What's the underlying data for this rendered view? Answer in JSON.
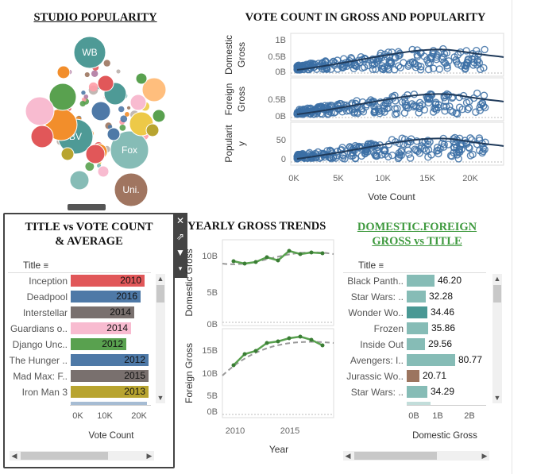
{
  "titles": {
    "studio": "STUDIO POPULARITY",
    "vote_count": "VOTE COUNT IN GROSS AND POPULARITY",
    "title_vs_vote_1": "TITLE vs VOTE COUNT",
    "title_vs_vote_2": "& AVERAGE",
    "yearly": "YEARLY GROSS TRENDS",
    "dom_foreign_1": "DOMESTIC.FOREIGN",
    "dom_foreign_2": "GROSS vs TITLE"
  },
  "bubbles": {
    "labels": [
      "WB",
      "BV",
      "Fox",
      "Uni."
    ]
  },
  "scatter": {
    "panels": [
      {
        "ylabel_1": "Domestic",
        "ylabel_2": "Gross",
        "ticks": [
          "1B",
          "0.5B",
          "0B"
        ]
      },
      {
        "ylabel_1": "Foreign",
        "ylabel_2": "Gross",
        "ticks": [
          "0.5B",
          "0B"
        ]
      },
      {
        "ylabel_1": "Popularit",
        "ylabel_2": "y",
        "ticks": [
          "50",
          "0"
        ]
      }
    ],
    "xticks": [
      "0K",
      "5K",
      "10K",
      "15K",
      "20K"
    ],
    "xlabel": "Vote Count"
  },
  "title_vote": {
    "col_header": "Title",
    "rows": [
      {
        "title": "Inception",
        "year": "2010",
        "color": "#e15759",
        "frac": 0.93
      },
      {
        "title": "Deadpool",
        "year": "2016",
        "color": "#4e79a7",
        "frac": 0.88
      },
      {
        "title": "Interstellar",
        "year": "2014",
        "color": "#79706e",
        "frac": 0.8
      },
      {
        "title": "Guardians o..",
        "year": "2014",
        "color": "#f8bbd0",
        "frac": 0.76
      },
      {
        "title": "Django Unc..",
        "year": "2012",
        "color": "#59a14f",
        "frac": 0.7
      },
      {
        "title": "The Hunger ..",
        "year": "2012",
        "color": "#4e79a7",
        "frac": 0.98
      },
      {
        "title": "Mad Max: F..",
        "year": "2015",
        "color": "#79706e",
        "frac": 0.98
      },
      {
        "title": "Iron Man 3",
        "year": "2013",
        "color": "#b8a430",
        "frac": 0.98
      }
    ],
    "xticks": [
      "0K",
      "10K",
      "20K"
    ],
    "xlabel": "Vote Count"
  },
  "yearly": {
    "panels": [
      {
        "ylabel": "Domestic Gross",
        "ticks": [
          "10B",
          "5B",
          "0B"
        ]
      },
      {
        "ylabel": "Foreign Gross",
        "ticks": [
          "15B",
          "10B",
          "5B",
          "0B"
        ]
      }
    ],
    "xticks": [
      "2010",
      "2015"
    ],
    "xlabel": "Year"
  },
  "dom_foreign": {
    "col_header": "Title",
    "rows": [
      {
        "title": "Black Panth..",
        "value": "46.20",
        "color": "#86bcb6",
        "frac": 0.46
      },
      {
        "title": "Star Wars: ..",
        "value": "32.28",
        "color": "#86bcb6",
        "frac": 0.32
      },
      {
        "title": "Wonder Wo..",
        "value": "34.46",
        "color": "#499894",
        "frac": 0.34
      },
      {
        "title": "Frozen",
        "value": "35.86",
        "color": "#86bcb6",
        "frac": 0.36
      },
      {
        "title": "Inside Out",
        "value": "29.56",
        "color": "#86bcb6",
        "frac": 0.3
      },
      {
        "title": "Avengers: I..",
        "value": "80.77",
        "color": "#86bcb6",
        "frac": 0.81
      },
      {
        "title": "Jurassic Wo..",
        "value": "20.71",
        "color": "#9c755f",
        "frac": 0.21
      },
      {
        "title": "Star Wars: ..",
        "value": "34.29",
        "color": "#86bcb6",
        "frac": 0.34
      }
    ],
    "xticks": [
      "0B",
      "1B",
      "2B"
    ],
    "xlabel": "Domestic Gross"
  }
}
